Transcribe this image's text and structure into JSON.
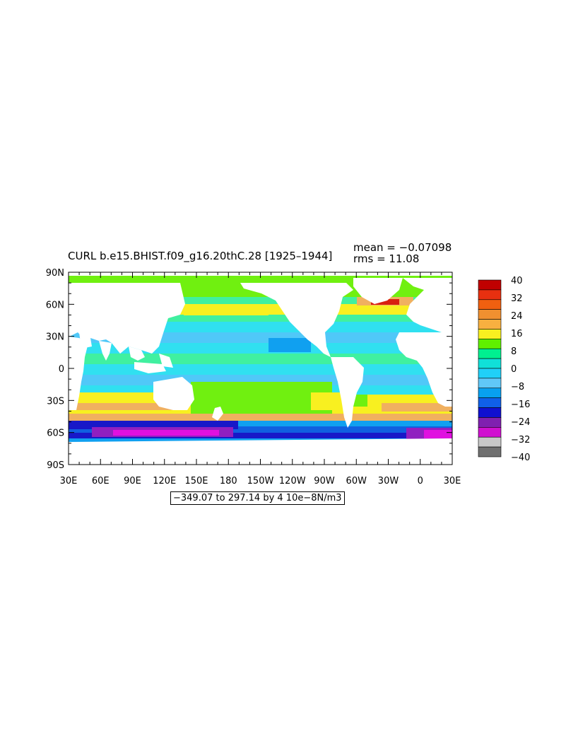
{
  "title": "CURL b.e15.BHIST.f09_g16.20thC.28  [1925–1944]",
  "stats": {
    "mean": "mean = −0.07098",
    "rms": "rms = 11.08"
  },
  "range_label": "−349.07 to 297.14 by 4 10e−8N/m3",
  "axes": {
    "y_ticks": [
      "90N",
      "60N",
      "30N",
      "0",
      "30S",
      "60S",
      "90S"
    ],
    "x_ticks": [
      "30E",
      "60E",
      "90E",
      "120E",
      "150E",
      "180",
      "150W",
      "120W",
      "90W",
      "60W",
      "30W",
      "0",
      "30E"
    ]
  },
  "colorbar": {
    "labels": [
      "40",
      "32",
      "24",
      "16",
      "8",
      "0",
      "−8",
      "−16",
      "−24",
      "−32",
      "−40"
    ],
    "colors": [
      "#c00000",
      "#e83010",
      "#f06010",
      "#f09030",
      "#f8b040",
      "#f8f020",
      "#60f000",
      "#00f090",
      "#10e0d8",
      "#20d0f8",
      "#60c8f8",
      "#08a0f0",
      "#1060e8",
      "#1010d0",
      "#8020b0",
      "#d010d0",
      "#c8c8c8",
      "#707070"
    ]
  },
  "map_colors": {
    "land": "#ffffff",
    "polar": "#20e090",
    "neutral": "#40f0a0",
    "pos_light": "#70f010",
    "pos_yellow": "#f8f020",
    "pos_orange": "#f0b060",
    "pos_red": "#d82010",
    "neg_cyan": "#30e0f0",
    "neg_light": "#50c8f8",
    "neg_mid": "#10a0f0",
    "neg_deep": "#1060e0",
    "neg_navy": "#1818c8",
    "neg_purple": "#9020c0",
    "neg_magenta": "#e010e0"
  }
}
